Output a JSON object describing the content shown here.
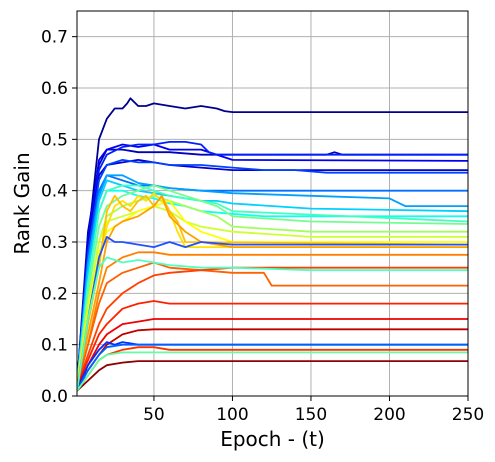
{
  "chart_data": {
    "type": "line",
    "title": "",
    "xlabel": "Epoch - (t)",
    "ylabel": "Rank Gain",
    "xlim": [
      1,
      250
    ],
    "ylim": [
      0.0,
      0.75
    ],
    "xticks": [
      50,
      100,
      150,
      200,
      250
    ],
    "yticks": [
      0.0,
      0.1,
      0.2,
      0.3,
      0.4,
      0.5,
      0.6,
      0.7
    ],
    "xtick_labels": [
      "50",
      "100",
      "150",
      "200",
      "250"
    ],
    "ytick_labels": [
      "0.0",
      "0.1",
      "0.2",
      "0.3",
      "0.4",
      "0.5",
      "0.6",
      "0.7"
    ],
    "grid": true,
    "legend": "none",
    "colormap": "jet",
    "series": [
      {
        "color": "#00008f",
        "x": [
          1,
          8,
          15,
          20,
          25,
          30,
          33,
          35,
          40,
          45,
          50,
          60,
          70,
          80,
          90,
          95,
          100,
          250
        ],
        "y": [
          0.02,
          0.3,
          0.5,
          0.54,
          0.56,
          0.56,
          0.57,
          0.58,
          0.565,
          0.565,
          0.57,
          0.565,
          0.56,
          0.565,
          0.56,
          0.555,
          0.553,
          0.553
        ]
      },
      {
        "color": "#0000bf",
        "x": [
          1,
          8,
          15,
          20,
          30,
          40,
          50,
          60,
          80,
          100,
          140,
          160,
          165,
          170,
          250
        ],
        "y": [
          0.02,
          0.32,
          0.45,
          0.48,
          0.48,
          0.475,
          0.475,
          0.475,
          0.47,
          0.47,
          0.47,
          0.47,
          0.475,
          0.47,
          0.47
        ]
      },
      {
        "color": "#0000ef",
        "x": [
          1,
          8,
          15,
          20,
          30,
          40,
          50,
          60,
          80,
          100,
          250
        ],
        "y": [
          0.02,
          0.3,
          0.46,
          0.48,
          0.49,
          0.485,
          0.49,
          0.48,
          0.48,
          0.46,
          0.458
        ]
      },
      {
        "color": "#0020ff",
        "x": [
          1,
          8,
          15,
          20,
          30,
          40,
          50,
          60,
          70,
          80,
          85,
          90,
          250
        ],
        "y": [
          0.02,
          0.3,
          0.44,
          0.47,
          0.485,
          0.49,
          0.49,
          0.495,
          0.495,
          0.49,
          0.475,
          0.47,
          0.47
        ]
      },
      {
        "color": "#0000cf",
        "x": [
          1,
          8,
          15,
          20,
          30,
          40,
          50,
          60,
          80,
          100,
          250
        ],
        "y": [
          0.02,
          0.3,
          0.43,
          0.45,
          0.455,
          0.46,
          0.455,
          0.45,
          0.445,
          0.44,
          0.44
        ]
      },
      {
        "color": "#0040ff",
        "x": [
          1,
          8,
          15,
          20,
          30,
          40,
          50,
          60,
          80,
          100,
          120,
          140,
          160,
          250
        ],
        "y": [
          0.02,
          0.28,
          0.42,
          0.45,
          0.46,
          0.455,
          0.455,
          0.45,
          0.45,
          0.445,
          0.44,
          0.44,
          0.435,
          0.435
        ]
      },
      {
        "color": "#0070ff",
        "x": [
          1,
          8,
          15,
          20,
          30,
          40,
          50,
          60,
          80,
          100,
          250
        ],
        "y": [
          0.02,
          0.26,
          0.4,
          0.43,
          0.42,
          0.41,
          0.41,
          0.405,
          0.4,
          0.4,
          0.4
        ]
      },
      {
        "color": "#00a0ff",
        "x": [
          1,
          8,
          15,
          20,
          30,
          40,
          50,
          60,
          80,
          100,
          150,
          200,
          210,
          250
        ],
        "y": [
          0.02,
          0.26,
          0.39,
          0.43,
          0.43,
          0.415,
          0.41,
          0.405,
          0.4,
          0.395,
          0.39,
          0.385,
          0.37,
          0.37
        ]
      },
      {
        "color": "#00d0ff",
        "x": [
          1,
          8,
          15,
          20,
          30,
          40,
          50,
          60,
          70,
          80,
          90,
          100,
          150,
          250
        ],
        "y": [
          0.02,
          0.24,
          0.38,
          0.42,
          0.41,
          0.4,
          0.395,
          0.39,
          0.385,
          0.38,
          0.38,
          0.375,
          0.365,
          0.36
        ]
      },
      {
        "color": "#10ffef",
        "x": [
          1,
          8,
          15,
          20,
          30,
          40,
          50,
          60,
          70,
          80,
          100,
          120,
          250
        ],
        "y": [
          0.02,
          0.22,
          0.36,
          0.4,
          0.4,
          0.39,
          0.385,
          0.375,
          0.37,
          0.36,
          0.355,
          0.35,
          0.35
        ]
      },
      {
        "color": "#40ffbf",
        "x": [
          1,
          8,
          15,
          20,
          30,
          40,
          50,
          60,
          70,
          80,
          90,
          100,
          250
        ],
        "y": [
          0.02,
          0.22,
          0.36,
          0.4,
          0.41,
          0.41,
          0.4,
          0.39,
          0.385,
          0.38,
          0.375,
          0.36,
          0.34
        ]
      },
      {
        "color": "#70ff8f",
        "x": [
          1,
          8,
          15,
          20,
          30,
          40,
          50,
          60,
          70,
          80,
          90,
          100,
          150,
          250
        ],
        "y": [
          0.02,
          0.2,
          0.33,
          0.37,
          0.39,
          0.4,
          0.41,
          0.4,
          0.39,
          0.38,
          0.37,
          0.35,
          0.34,
          0.335
        ]
      },
      {
        "color": "#a0ff5f",
        "x": [
          1,
          8,
          15,
          20,
          30,
          40,
          50,
          60,
          70,
          80,
          90,
          100,
          150,
          250
        ],
        "y": [
          0.02,
          0.18,
          0.3,
          0.35,
          0.37,
          0.38,
          0.39,
          0.38,
          0.37,
          0.36,
          0.35,
          0.33,
          0.32,
          0.32
        ]
      },
      {
        "color": "#d0ff2f",
        "x": [
          1,
          8,
          15,
          20,
          30,
          40,
          50,
          60,
          70,
          80,
          100,
          150,
          250
        ],
        "y": [
          0.02,
          0.18,
          0.3,
          0.34,
          0.35,
          0.36,
          0.37,
          0.36,
          0.34,
          0.33,
          0.32,
          0.31,
          0.31
        ]
      },
      {
        "color": "#ffff00",
        "x": [
          1,
          8,
          15,
          20,
          30,
          40,
          50,
          60,
          70,
          80,
          100,
          250
        ],
        "y": [
          0.02,
          0.16,
          0.28,
          0.32,
          0.34,
          0.36,
          0.37,
          0.38,
          0.34,
          0.32,
          0.3,
          0.3
        ]
      },
      {
        "color": "#ffe000",
        "x": [
          1,
          8,
          15,
          20,
          25,
          30,
          35,
          40,
          45,
          50,
          55,
          60,
          65,
          70,
          250
        ],
        "y": [
          0.02,
          0.15,
          0.26,
          0.33,
          0.37,
          0.38,
          0.37,
          0.39,
          0.38,
          0.395,
          0.38,
          0.36,
          0.32,
          0.29,
          0.29
        ]
      },
      {
        "color": "#ffc000",
        "x": [
          1,
          8,
          15,
          20,
          25,
          30,
          35,
          40,
          45,
          50,
          55,
          60,
          65,
          70,
          250
        ],
        "y": [
          0.02,
          0.14,
          0.25,
          0.36,
          0.39,
          0.37,
          0.36,
          0.38,
          0.39,
          0.37,
          0.39,
          0.36,
          0.34,
          0.3,
          0.295
        ]
      },
      {
        "color": "#ffa000",
        "x": [
          1,
          8,
          15,
          20,
          25,
          30,
          40,
          50,
          55,
          60,
          70,
          80,
          100,
          250
        ],
        "y": [
          0.02,
          0.12,
          0.22,
          0.3,
          0.33,
          0.34,
          0.35,
          0.37,
          0.39,
          0.35,
          0.32,
          0.3,
          0.29,
          0.29
        ]
      },
      {
        "color": "#ff8000",
        "x": [
          1,
          8,
          15,
          20,
          30,
          40,
          50,
          60,
          80,
          100,
          250
        ],
        "y": [
          0.02,
          0.1,
          0.2,
          0.25,
          0.27,
          0.28,
          0.28,
          0.275,
          0.275,
          0.275,
          0.275
        ]
      },
      {
        "color": "#ff6000",
        "x": [
          1,
          8,
          15,
          20,
          30,
          40,
          50,
          60,
          80,
          100,
          120,
          125,
          250
        ],
        "y": [
          0.02,
          0.1,
          0.18,
          0.22,
          0.24,
          0.25,
          0.26,
          0.25,
          0.245,
          0.24,
          0.24,
          0.215,
          0.215
        ]
      },
      {
        "color": "#ff4000",
        "x": [
          1,
          8,
          15,
          20,
          30,
          40,
          50,
          60,
          80,
          100,
          250
        ],
        "y": [
          0.02,
          0.08,
          0.14,
          0.17,
          0.2,
          0.22,
          0.235,
          0.24,
          0.245,
          0.25,
          0.25
        ]
      },
      {
        "color": "#ff2000",
        "x": [
          1,
          8,
          15,
          20,
          30,
          40,
          50,
          60,
          80,
          100,
          250
        ],
        "y": [
          0.02,
          0.07,
          0.12,
          0.14,
          0.17,
          0.18,
          0.185,
          0.18,
          0.18,
          0.18,
          0.18
        ]
      },
      {
        "color": "#ef0000",
        "x": [
          1,
          8,
          15,
          20,
          30,
          40,
          50,
          60,
          80,
          100,
          250
        ],
        "y": [
          0.02,
          0.06,
          0.1,
          0.12,
          0.14,
          0.145,
          0.15,
          0.15,
          0.15,
          0.15,
          0.15
        ]
      },
      {
        "color": "#bf0000",
        "x": [
          1,
          8,
          15,
          20,
          30,
          40,
          50,
          60,
          80,
          100,
          250
        ],
        "y": [
          0.02,
          0.05,
          0.08,
          0.1,
          0.12,
          0.128,
          0.13,
          0.13,
          0.13,
          0.13,
          0.13
        ]
      },
      {
        "color": "#8f0000",
        "x": [
          1,
          8,
          15,
          20,
          30,
          40,
          50,
          60,
          80,
          100,
          250
        ],
        "y": [
          0.01,
          0.03,
          0.05,
          0.06,
          0.065,
          0.068,
          0.068,
          0.068,
          0.068,
          0.068,
          0.068
        ]
      },
      {
        "color": "#ff3000",
        "x": [
          1,
          8,
          15,
          20,
          30,
          40,
          50,
          60,
          70,
          250
        ],
        "y": [
          0.01,
          0.04,
          0.07,
          0.08,
          0.09,
          0.095,
          0.095,
          0.09,
          0.09,
          0.09
        ]
      },
      {
        "color": "#0030ff",
        "x": [
          1,
          8,
          15,
          20,
          25,
          30,
          40,
          50,
          60,
          100,
          250
        ],
        "y": [
          0.01,
          0.06,
          0.09,
          0.105,
          0.1,
          0.105,
          0.1,
          0.1,
          0.1,
          0.1,
          0.1
        ]
      },
      {
        "color": "#0060ff",
        "x": [
          1,
          8,
          15,
          20,
          30,
          40,
          50,
          60,
          100,
          250
        ],
        "y": [
          0.01,
          0.05,
          0.08,
          0.095,
          0.1,
          0.1,
          0.1,
          0.1,
          0.1,
          0.1
        ]
      },
      {
        "color": "#60ffa0",
        "x": [
          1,
          8,
          15,
          20,
          30,
          40,
          50,
          60,
          100,
          250
        ],
        "y": [
          0.01,
          0.04,
          0.07,
          0.08,
          0.085,
          0.085,
          0.085,
          0.085,
          0.085,
          0.085
        ]
      },
      {
        "color": "#2050ff",
        "x": [
          1,
          8,
          15,
          20,
          25,
          30,
          40,
          50,
          60,
          70,
          80,
          100,
          130,
          250
        ],
        "y": [
          0.01,
          0.15,
          0.27,
          0.31,
          0.3,
          0.3,
          0.295,
          0.29,
          0.3,
          0.29,
          0.3,
          0.295,
          0.295,
          0.295
        ]
      },
      {
        "color": "#50ffc0",
        "x": [
          1,
          8,
          15,
          20,
          30,
          40,
          50,
          60,
          80,
          100,
          150,
          250
        ],
        "y": [
          0.01,
          0.15,
          0.25,
          0.27,
          0.26,
          0.265,
          0.26,
          0.255,
          0.25,
          0.25,
          0.245,
          0.245
        ]
      }
    ]
  }
}
